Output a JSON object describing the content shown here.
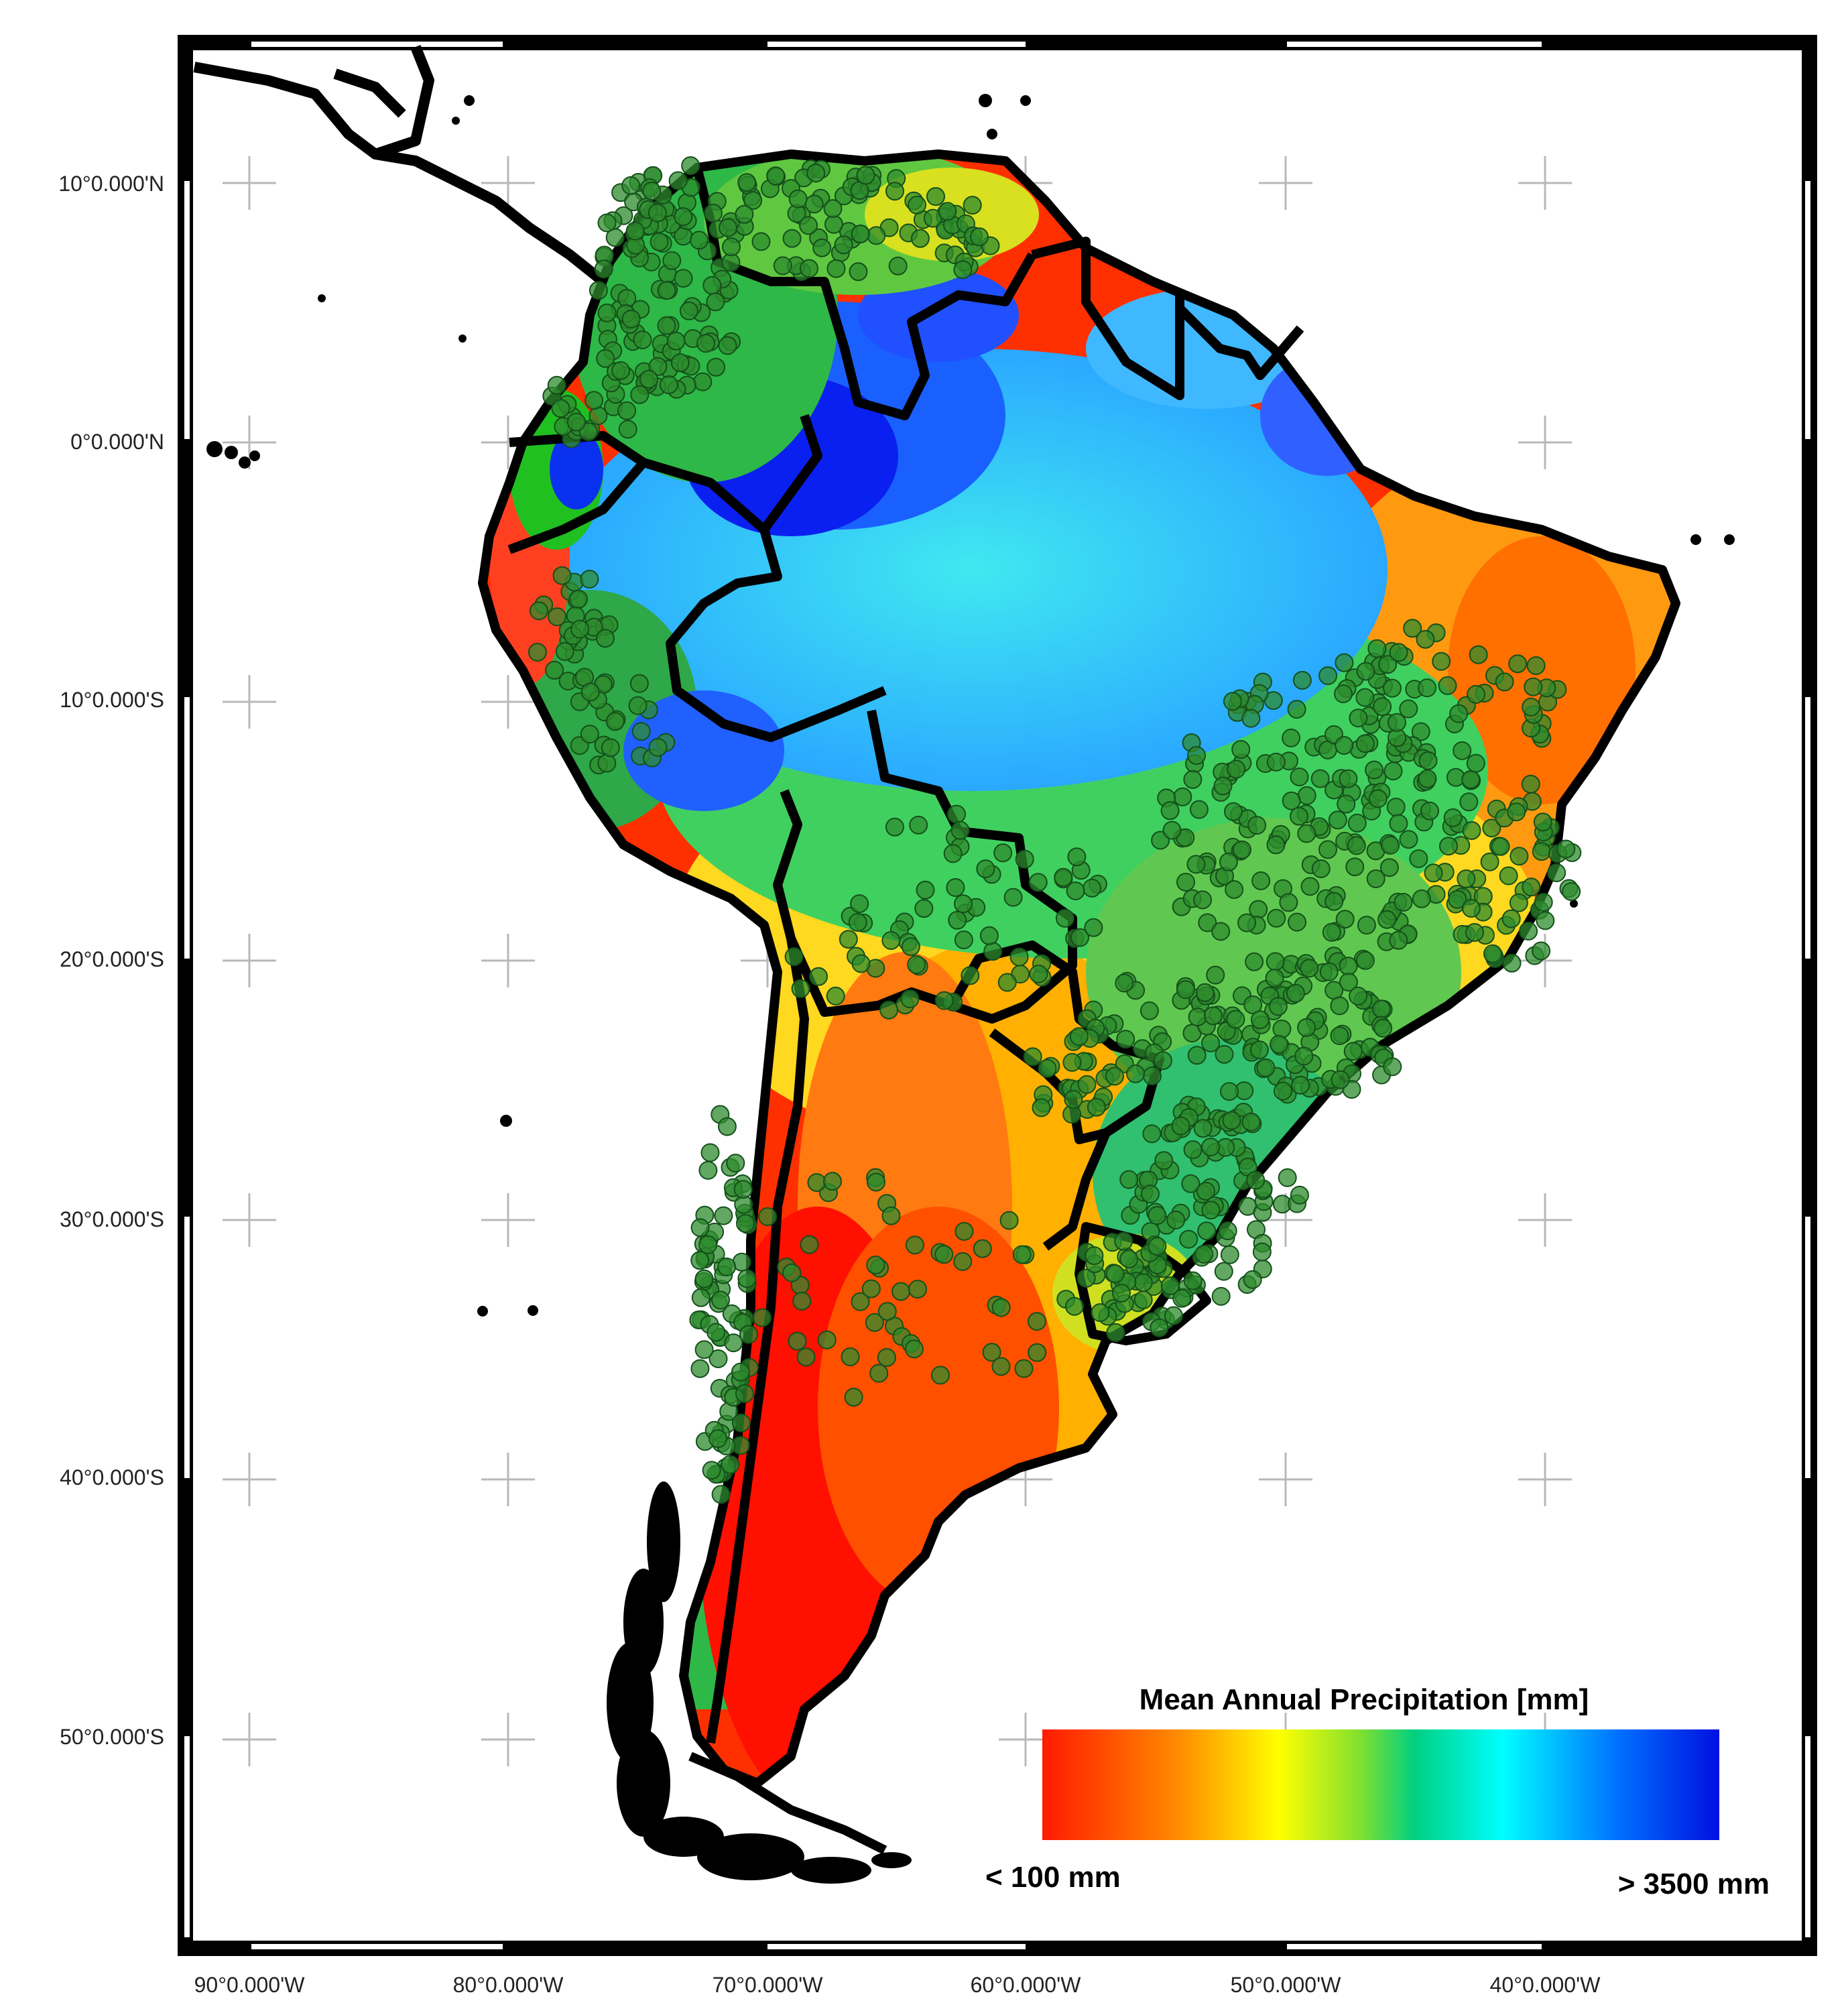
{
  "map": {
    "lat_labels": [
      "10°0.000'N",
      "0°0.000'N",
      "10°0.000'S",
      "20°0.000'S",
      "30°0.000'S",
      "40°0.000'S",
      "50°0.000'S"
    ],
    "lon_labels": [
      "90°0.000'W",
      "80°0.000'W",
      "70°0.000'W",
      "60°0.000'W",
      "50°0.000'W",
      "40°0.000'W"
    ]
  },
  "legend": {
    "title": "Mean Annual Precipitation [mm]",
    "min_label": "< 100 mm",
    "max_label": "> 3500 mm",
    "colors": [
      "#ff0000",
      "#ff8000",
      "#ffff00",
      "#00e060",
      "#00ffff",
      "#0000ff"
    ]
  },
  "colors": {
    "station_fill": "#2e8b2e",
    "border": "#000000",
    "dry": "#ff2a00",
    "semi_dry": "#ff9a00",
    "moderate": "#ffee00",
    "humid": "#20d070",
    "wet": "#30d8f0",
    "very_wet": "#1040ff"
  }
}
